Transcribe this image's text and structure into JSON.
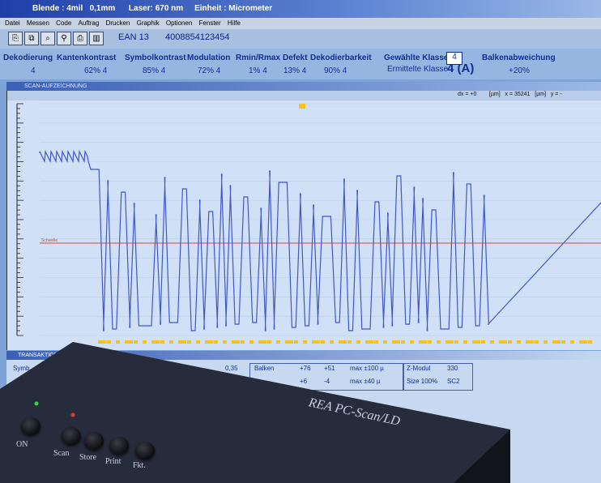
{
  "window": {
    "title": "Blende : 4mil   0,1mm      Laser: 670 nm     Einheit : Micrometer"
  },
  "menu": [
    "Datei",
    "Messen",
    "Code",
    "Auftrag",
    "Drucken",
    "Graphik",
    "Optionen",
    "Fenster",
    "Hilfe"
  ],
  "toolbar": {
    "symbology": "EAN 13",
    "code_value": "4008854123454"
  },
  "metrics": {
    "headers": [
      "Dekodierung",
      "Kantenkontrast",
      "Symbolkontrast",
      "Modulation",
      "Rmin/Rmax",
      "Defekt",
      "Dekodierbarkeit"
    ],
    "values": [
      "4",
      "62%  4",
      "85%  4",
      "72%  4",
      "1%  4",
      "13%  4",
      "90%  4"
    ],
    "selected_grade_label": "Gewählte Klasse",
    "selected_grade_value": "4",
    "computed_grade_label": "Ermittelte Klasse",
    "computed_grade_value": "4 (A)",
    "bar_deviation_label": "Balkenabweichung",
    "bar_deviation_value": "+20%"
  },
  "scan_panel": {
    "title": "SCAN-AUFZEICHNUNG",
    "readout": "dx = +0        [µm]   x = 35241   [µm]   y = -"
  },
  "lower_panel": {
    "title": "TRANSAKTION",
    "row1": {
      "c1": "Symb",
      "c2": "0,35",
      "label": "Balken",
      "v1": "+76",
      "v2": "+51",
      "max": "max ±100 µ",
      "right_label": "Z-Modul",
      "right_value": "330"
    },
    "row2": {
      "v1": "+6",
      "v2": "-4",
      "max": "max ±40 µ",
      "right_label": "Size 100%",
      "right_value": "SC2"
    }
  },
  "device": {
    "brand": "REA  PC-Scan/LD",
    "buttons": [
      "ON",
      "Scan",
      "Store",
      "Print",
      "Fkt."
    ]
  },
  "chart_data": {
    "type": "line",
    "title": "",
    "xlabel": "",
    "ylabel": "",
    "threshold_label": "Schwelle",
    "x": [
      0,
      10,
      20,
      30,
      40,
      50,
      60,
      70,
      80,
      90,
      100,
      110,
      120,
      130,
      140,
      150,
      160,
      170,
      180,
      190,
      200,
      210,
      220,
      230,
      240,
      250,
      260,
      270,
      280,
      290,
      300,
      310,
      320,
      330,
      340,
      350,
      360,
      370,
      380,
      390,
      400,
      410,
      420,
      430,
      440,
      450,
      460,
      470,
      480,
      490,
      500,
      510,
      520,
      530,
      540,
      550,
      560,
      570,
      580,
      590,
      600,
      610,
      620,
      630,
      640,
      650,
      660,
      670,
      680,
      690,
      700,
      710,
      720
    ],
    "grid": true,
    "legend": "none",
    "colors": {
      "signal": "#4257c8",
      "threshold": "#d8463a",
      "marks": "#f4c21a",
      "line_bg": "#cfe0f7"
    }
  }
}
